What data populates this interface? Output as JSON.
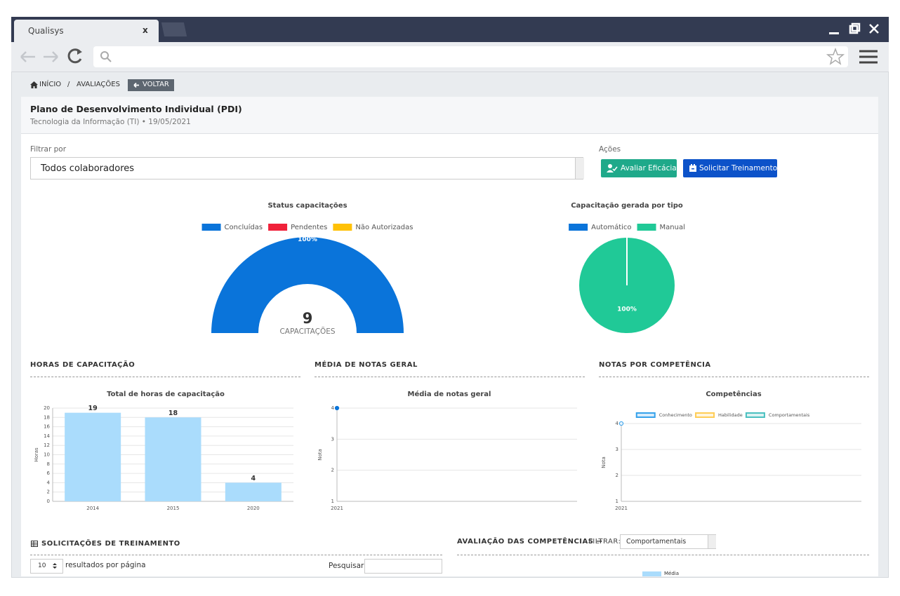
{
  "browser": {
    "tab_title": "Qualisys",
    "tab_close": "x"
  },
  "breadcrumb": {
    "home": "INÍCIO",
    "separator": "/",
    "current": "AVALIAÇÕES",
    "back": "VOLTAR"
  },
  "header": {
    "title": "Plano de Desenvolvimento Individual (PDI)",
    "subtitle": "Tecnologia da Informação (TI) • 19/05/2021"
  },
  "filter": {
    "label": "Filtrar por",
    "value": "Todos colaboradores"
  },
  "actions": {
    "label": "Ações",
    "buttons": [
      "Avaliar Eficácia",
      "Solicitar Treinamento"
    ]
  },
  "sections": [
    "HORAS DE CAPACITAÇÃO",
    "MÉDIA DE NOTAS GERAL",
    "NOTAS POR COMPETÊNCIA"
  ],
  "requests": {
    "title": "SOLICITAÇÕES DE TREINAMENTO",
    "page_size": "10",
    "page_size_label": "resultados por página",
    "search_label": "Pesquisar"
  },
  "evaluation": {
    "title": "AVALIAÇÃO DAS COMPETÊNCIAS →",
    "filter_label": "FILTRAR:",
    "filter_value": "Comportamentais",
    "legend": "Média"
  },
  "chart_data": [
    {
      "type": "doughnut",
      "half": true,
      "title": "Status capacitações",
      "categories": [
        "Concluídas",
        "Pendentes",
        "Não Autorizadas"
      ],
      "colors": [
        "#0a74da",
        "#f0213a",
        "#ffc107"
      ],
      "values": [
        100,
        0,
        0
      ],
      "value_labels": [
        "100%",
        null,
        null
      ],
      "center_value": 9,
      "center_label": "CAPACITAÇÕES"
    },
    {
      "type": "pie",
      "title": "Capacitação gerada por tipo",
      "categories": [
        "Automático",
        "Manual"
      ],
      "colors": [
        "#0a74da",
        "#20c997"
      ],
      "values": [
        0,
        100
      ],
      "value_labels": [
        null,
        "100%"
      ]
    },
    {
      "type": "bar",
      "title": "Total de horas de capacitação",
      "ylabel": "Horas",
      "categories": [
        "2014",
        "2015",
        "2020"
      ],
      "values": [
        19,
        18,
        4
      ],
      "color": "#aadcfc",
      "ylim": [
        0,
        20
      ],
      "yticks": [
        0,
        2,
        4,
        6,
        8,
        10,
        12,
        14,
        16,
        18,
        20
      ],
      "grid": true
    },
    {
      "type": "line",
      "title": "Média de notas geral",
      "ylabel": "Nota",
      "categories": [
        "2021"
      ],
      "values": [
        4
      ],
      "color": "#0a74da",
      "ylim": [
        1,
        4
      ],
      "yticks": [
        1,
        2,
        3,
        4
      ],
      "grid": true
    },
    {
      "type": "line",
      "title": "Competências",
      "ylabel": "Nota",
      "categories": [
        "2021"
      ],
      "series": [
        {
          "name": "Conhecimento",
          "color": "#36a2eb",
          "values": [
            4
          ]
        },
        {
          "name": "Habilidade",
          "color": "#ffcd56",
          "values": [
            null
          ]
        },
        {
          "name": "Comportamentais",
          "color": "#4bc0c0",
          "values": [
            null
          ]
        }
      ],
      "ylim": [
        1,
        4
      ],
      "yticks": [
        1,
        2,
        3,
        4
      ],
      "grid": true
    }
  ]
}
